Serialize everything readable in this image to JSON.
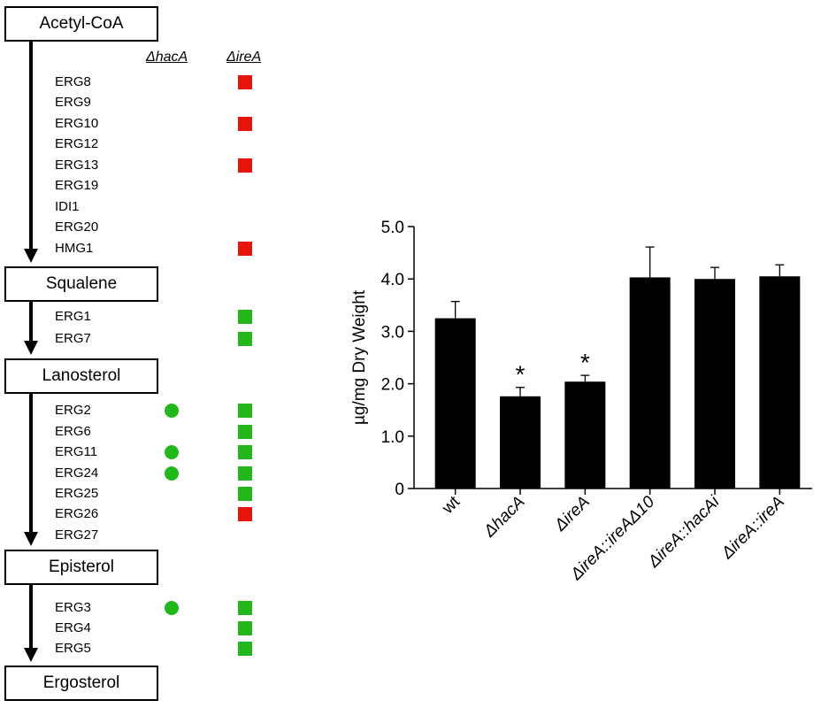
{
  "pathway": {
    "columns": {
      "hacA": "ΔhacA",
      "ireA": "ΔireA"
    },
    "metabolites": [
      "Acetyl-CoA",
      "Squalene",
      "Lanosterol",
      "Episterol",
      "Ergosterol"
    ],
    "colors": {
      "down": "#e8150e",
      "up": "#22b81c"
    },
    "genes": [
      {
        "name": "ERG8",
        "hacA": "",
        "ireA": "red"
      },
      {
        "name": "ERG9",
        "hacA": "",
        "ireA": ""
      },
      {
        "name": "ERG10",
        "hacA": "",
        "ireA": "red"
      },
      {
        "name": "ERG12",
        "hacA": "",
        "ireA": ""
      },
      {
        "name": "ERG13",
        "hacA": "",
        "ireA": "red"
      },
      {
        "name": "ERG19",
        "hacA": "",
        "ireA": ""
      },
      {
        "name": "IDI1",
        "hacA": "",
        "ireA": ""
      },
      {
        "name": "ERG20",
        "hacA": "",
        "ireA": ""
      },
      {
        "name": "HMG1",
        "hacA": "",
        "ireA": "red"
      },
      {
        "name": "ERG1",
        "hacA": "",
        "ireA": "green"
      },
      {
        "name": "ERG7",
        "hacA": "",
        "ireA": "green"
      },
      {
        "name": "ERG2",
        "hacA": "green",
        "ireA": "green"
      },
      {
        "name": "ERG6",
        "hacA": "",
        "ireA": "green"
      },
      {
        "name": "ERG11",
        "hacA": "green",
        "ireA": "green"
      },
      {
        "name": "ERG24",
        "hacA": "green",
        "ireA": "green"
      },
      {
        "name": "ERG25",
        "hacA": "",
        "ireA": "green"
      },
      {
        "name": "ERG26",
        "hacA": "",
        "ireA": "red"
      },
      {
        "name": "ERG27",
        "hacA": "",
        "ireA": ""
      },
      {
        "name": "ERG3",
        "hacA": "green",
        "ireA": "green"
      },
      {
        "name": "ERG4",
        "hacA": "",
        "ireA": "green"
      },
      {
        "name": "ERG5",
        "hacA": "",
        "ireA": "green"
      }
    ]
  },
  "chart_data": {
    "type": "bar",
    "categories": [
      "wt",
      "ΔhacA",
      "ΔireA",
      "ΔireA::ireAΔ10",
      "ΔireA::hacAi",
      "ΔireA::ireA"
    ],
    "values": [
      3.25,
      1.76,
      2.04,
      4.03,
      4.0,
      4.05
    ],
    "errors": [
      0.32,
      0.17,
      0.12,
      0.58,
      0.22,
      0.22
    ],
    "significance": [
      "",
      "*",
      "*",
      "",
      "",
      ""
    ],
    "ylabel": "µg/mg Dry Weight",
    "ylim": [
      0,
      5.0
    ],
    "yticks": [
      0,
      1.0,
      2.0,
      3.0,
      4.0,
      5.0
    ],
    "ytick_labels": [
      "0",
      "1.0",
      "2.0",
      "3.0",
      "4.0",
      "5.0"
    ],
    "bar_color": "#000000",
    "grid": false
  }
}
